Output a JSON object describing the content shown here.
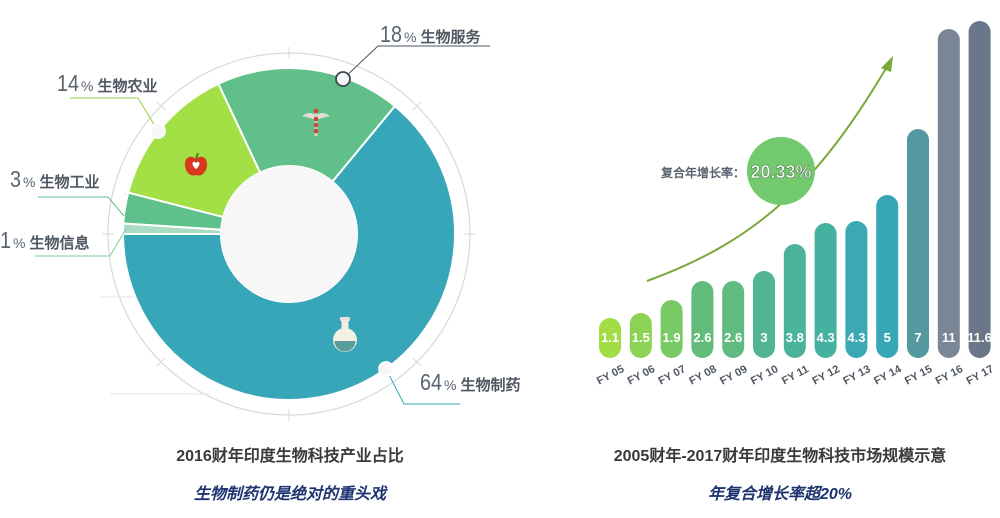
{
  "chart_data": [
    {
      "type": "pie",
      "title": "2016财年印度生物科技产业占比",
      "subtitle": "生物制药仍是绝对的重头戏",
      "donut": true,
      "categories": [
        "生物制药",
        "生物服务",
        "生物农业",
        "生物工业",
        "生物信息"
      ],
      "values": [
        64,
        18,
        14,
        3,
        1
      ],
      "unit": "%",
      "colors": [
        "#36a6b8",
        "#61bf8a",
        "#a3e046",
        "#5ec08a",
        "#a9dcc2"
      ],
      "icons": [
        "flask-icon",
        "caduceus-icon",
        "apple-icon",
        null,
        null
      ]
    },
    {
      "type": "bar",
      "title": "2005财年-2017财年印度生物科技市场规模示意",
      "subtitle": "年复合增长率超20%",
      "categories": [
        "FY 05",
        "FY 06",
        "FY 07",
        "FY 08",
        "FY 09",
        "FY 10",
        "FY 11",
        "FY 12",
        "FY 13",
        "FY 14",
        "FY 15",
        "FY 16",
        "FY 17"
      ],
      "values": [
        1.1,
        1.5,
        1.9,
        2.6,
        2.6,
        3,
        3.8,
        4.3,
        4.3,
        5,
        7,
        11,
        11.6
      ],
      "value_labels": [
        "1.1",
        "1.5",
        "1.9",
        "2.6",
        "2.6",
        "3",
        "3.8",
        "4.3",
        "4.3",
        "5",
        "7",
        "11",
        "11.6"
      ],
      "colors": [
        "#a3dd45",
        "#8dd353",
        "#79c965",
        "#63bb7b",
        "#5fbb80",
        "#52b592",
        "#4bb39c",
        "#45b1a0",
        "#3aa9b4",
        "#37a7b8",
        "#53999f",
        "#7a8595",
        "#6a7788"
      ],
      "annotation": {
        "label": "复合年增长率：",
        "value": "20.33%"
      },
      "xlabel": "",
      "ylabel": "",
      "grid": false
    }
  ],
  "pie": {
    "labels": [
      {
        "pct": "64",
        "pct_sign": "%",
        "name": "生物制药"
      },
      {
        "pct": "18",
        "pct_sign": "%",
        "name": "生物服务"
      },
      {
        "pct": "14",
        "pct_sign": "%",
        "name": "生物农业"
      },
      {
        "pct": "3",
        "pct_sign": "%",
        "name": "生物工业"
      },
      {
        "pct": "1",
        "pct_sign": "%",
        "name": "生物信息"
      }
    ],
    "title": "2016财年印度生物科技产业占比",
    "subtitle": "生物制药仍是绝对的重头戏"
  },
  "bars": {
    "title": "2005财年-2017财年印度生物科技市场规模示意",
    "subtitle": "年复合增长率超20%",
    "cagr_label": "复合年增长率：",
    "cagr_value": "20.33%"
  }
}
